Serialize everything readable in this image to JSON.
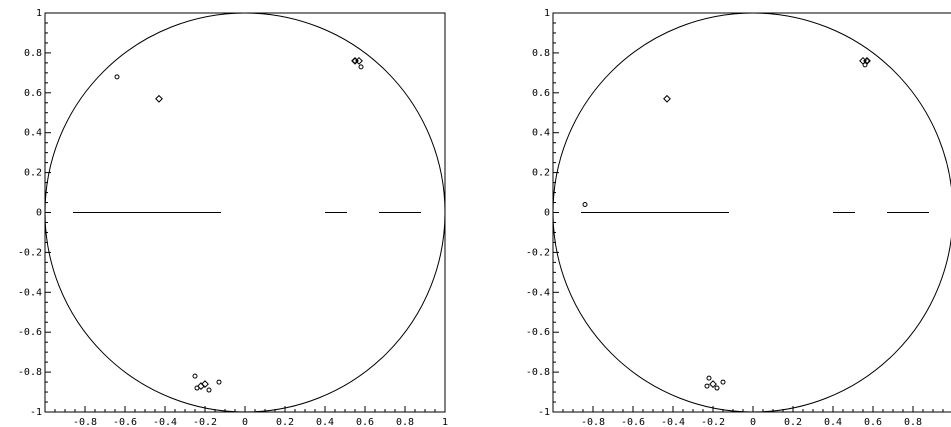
{
  "chart_data": [
    {
      "type": "scatter",
      "title": "",
      "xlabel": "",
      "ylabel": "",
      "xlim": [
        -1,
        1
      ],
      "ylim": [
        -1,
        1
      ],
      "xticks": [
        "-0.8",
        "-0.6",
        "-0.4",
        "-0.2",
        "0",
        "0.2",
        "0.4",
        "0.6",
        "0.8",
        "1"
      ],
      "yticks": [
        "1",
        "0.8",
        "0.6",
        "0.4",
        "0.2",
        "0",
        "-0.2",
        "-0.4",
        "-0.6",
        "-0.8",
        "-1"
      ],
      "grid": false,
      "unit_circle": true,
      "segments": [
        {
          "x1": -0.86,
          "x2": -0.12,
          "y": 0
        },
        {
          "x1": 0.4,
          "x2": 0.51,
          "y": 0
        },
        {
          "x1": 0.67,
          "x2": 0.88,
          "y": 0
        }
      ],
      "series": [
        {
          "marker": "circle",
          "points": [
            [
              -0.64,
              0.68
            ],
            [
              0.58,
              0.73
            ],
            [
              0.55,
              0.76
            ],
            [
              -0.25,
              -0.82
            ],
            [
              -0.13,
              -0.85
            ],
            [
              -0.24,
              -0.88
            ],
            [
              -0.18,
              -0.89
            ]
          ]
        },
        {
          "marker": "diamond",
          "points": [
            [
              -0.43,
              0.57
            ],
            [
              0.57,
              0.76
            ],
            [
              0.55,
              0.76
            ],
            [
              -0.2,
              -0.86
            ],
            [
              -0.22,
              -0.87
            ]
          ]
        }
      ]
    },
    {
      "type": "scatter",
      "title": "",
      "xlabel": "",
      "ylabel": "",
      "xlim": [
        -1,
        1
      ],
      "ylim": [
        -1,
        1
      ],
      "xticks": [
        "-0.8",
        "-0.6",
        "-0.4",
        "-0.2",
        "0",
        "0.2",
        "0.4",
        "0.6",
        "0.8"
      ],
      "yticks": [
        "1",
        "0.8",
        "0.6",
        "0.4",
        "0.2",
        "0",
        "-0.2",
        "-0.4",
        "-0.6",
        "-0.8",
        "-1"
      ],
      "grid": false,
      "unit_circle": true,
      "segments": [
        {
          "x1": -0.86,
          "x2": -0.12,
          "y": 0
        },
        {
          "x1": 0.4,
          "x2": 0.51,
          "y": 0
        },
        {
          "x1": 0.67,
          "x2": 0.88,
          "y": 0
        }
      ],
      "series": [
        {
          "marker": "circle",
          "points": [
            [
              -0.84,
              0.04
            ],
            [
              0.56,
              0.74
            ],
            [
              0.57,
              0.76
            ],
            [
              -0.22,
              -0.83
            ],
            [
              -0.15,
              -0.85
            ],
            [
              -0.23,
              -0.87
            ],
            [
              -0.18,
              -0.88
            ]
          ]
        },
        {
          "marker": "diamond",
          "points": [
            [
              -0.43,
              0.57
            ],
            [
              0.55,
              0.76
            ],
            [
              0.57,
              0.76
            ],
            [
              -0.2,
              -0.86
            ]
          ]
        }
      ]
    }
  ]
}
